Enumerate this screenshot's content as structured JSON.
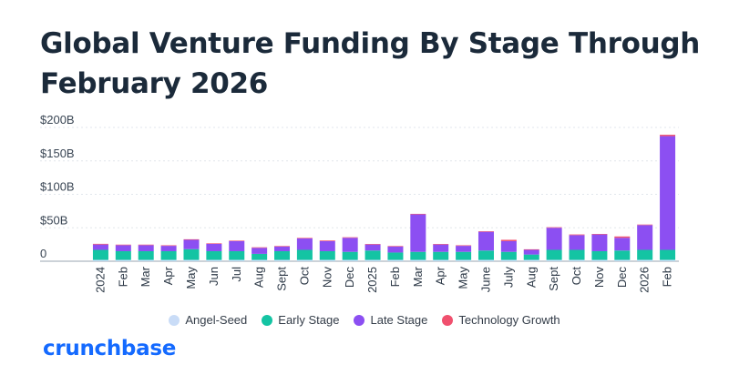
{
  "chart_data": {
    "type": "bar",
    "stacked": true,
    "title": "Global Venture Funding By Stage Through February 2026",
    "categories": [
      "2024",
      "Feb",
      "Mar",
      "Apr",
      "May",
      "Jun",
      "Jul",
      "Aug",
      "Sept",
      "Oct",
      "Nov",
      "Dec",
      "2025",
      "Feb",
      "Mar",
      "Apr",
      "May",
      "June",
      "July",
      "Aug",
      "Sept",
      "Oct",
      "Nov",
      "Dec",
      "2026",
      "Feb"
    ],
    "series": [
      {
        "name": "Angel-Seed",
        "color": "#c9dcf7",
        "values": [
          2,
          2,
          2,
          2,
          2,
          2,
          2,
          2,
          2,
          2,
          2,
          2,
          2,
          2,
          2,
          2,
          2,
          2,
          2,
          2,
          2,
          2,
          2,
          2,
          2,
          2
        ]
      },
      {
        "name": "Early Stage",
        "color": "#14c4a3",
        "values": [
          15,
          13,
          13,
          13,
          16,
          13,
          13,
          9,
          13,
          15,
          13,
          12,
          14,
          11,
          12,
          12,
          12,
          14,
          12,
          8,
          15,
          15,
          13,
          14,
          15,
          15
        ]
      },
      {
        "name": "Late Stage",
        "color": "#8c4ff2",
        "values": [
          8,
          9,
          9,
          8,
          14,
          11,
          15,
          9,
          7,
          17,
          15,
          21,
          9,
          9,
          56,
          11,
          9,
          28,
          16,
          7,
          33,
          22,
          25,
          19,
          37,
          170
        ]
      },
      {
        "name": "Technology Growth",
        "color": "#f0506e",
        "values": [
          1,
          0.5,
          0.5,
          0.5,
          0.5,
          0.5,
          0.5,
          0.5,
          0.5,
          0.5,
          1,
          0.5,
          0.5,
          0.5,
          0.5,
          0.5,
          0.5,
          0.5,
          2,
          0.5,
          0.5,
          1,
          0.5,
          2,
          0.5,
          2
        ]
      }
    ],
    "yticks": [
      {
        "value": 0,
        "label": "0"
      },
      {
        "value": 50,
        "label": "$50B"
      },
      {
        "value": 100,
        "label": "$100B"
      },
      {
        "value": 150,
        "label": "$150B"
      },
      {
        "value": 200,
        "label": "$200B"
      }
    ],
    "ylim": [
      0,
      200
    ],
    "grid": true,
    "legend_position": "bottom"
  },
  "brand": {
    "name": "crunchbase",
    "color": "#146aff"
  }
}
